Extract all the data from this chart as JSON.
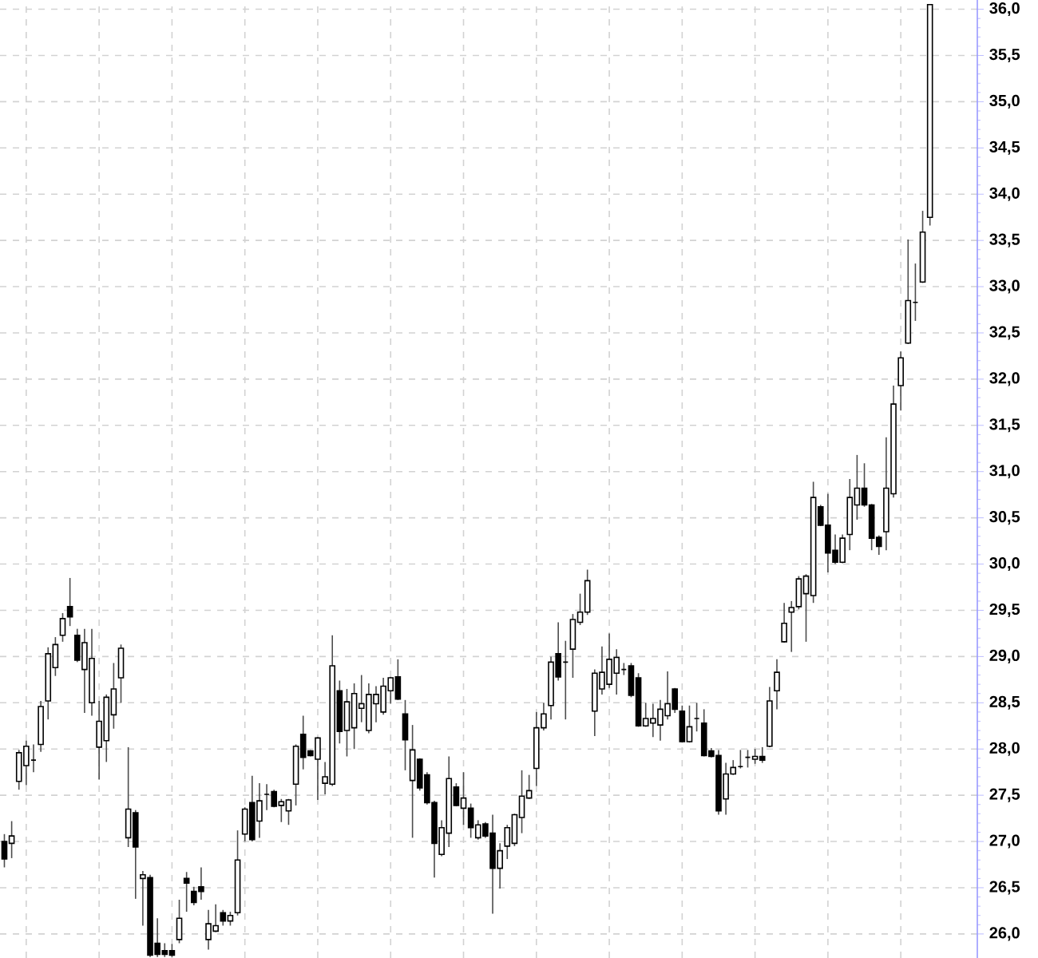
{
  "chart_data": {
    "type": "candlestick",
    "categories": [
      null,
      null,
      null,
      null,
      null,
      null,
      null,
      null,
      null,
      null,
      null,
      null,
      null,
      null,
      null,
      null,
      null,
      null,
      null,
      null,
      null,
      null,
      null,
      null,
      null,
      null,
      null,
      null,
      null,
      null,
      null,
      null,
      null,
      null,
      null,
      null,
      null,
      null,
      null,
      null,
      null,
      null,
      null,
      null,
      null,
      null,
      null,
      null,
      null,
      null,
      null,
      null,
      null,
      null,
      null,
      null,
      null,
      null,
      null,
      null,
      null,
      null,
      null,
      null,
      null,
      null,
      null,
      null,
      null,
      null,
      null,
      null,
      null,
      null,
      null,
      null,
      null,
      null,
      null,
      null,
      null,
      null,
      null,
      null,
      null,
      null,
      null,
      null,
      null,
      null,
      null,
      null,
      null,
      null,
      null,
      null,
      null,
      null,
      null,
      null,
      null,
      null,
      null,
      null,
      null,
      null,
      null,
      null,
      null,
      null,
      null,
      null,
      null,
      null,
      null,
      null,
      null,
      null,
      null,
      null,
      null,
      null,
      null,
      null,
      null,
      null,
      null,
      null
    ],
    "ohlc": [
      [
        27.0,
        27.08,
        26.72,
        26.81
      ],
      [
        26.98,
        27.22,
        26.82,
        27.06
      ],
      [
        27.65,
        27.99,
        27.56,
        27.96
      ],
      [
        27.82,
        28.09,
        27.61,
        28.03
      ],
      [
        27.88,
        28.05,
        27.75,
        27.88
      ],
      [
        28.05,
        28.52,
        27.97,
        28.46
      ],
      [
        28.52,
        29.1,
        28.32,
        29.03
      ],
      [
        28.88,
        29.21,
        28.79,
        29.13
      ],
      [
        29.23,
        29.47,
        29.16,
        29.41
      ],
      [
        29.54,
        29.85,
        29.33,
        29.43
      ],
      [
        29.23,
        29.3,
        28.94,
        28.96
      ],
      [
        28.86,
        29.3,
        28.39,
        29.15
      ],
      [
        28.5,
        29.3,
        28.36,
        28.98
      ],
      [
        28.02,
        28.52,
        27.67,
        28.3
      ],
      [
        28.09,
        28.59,
        27.86,
        28.56
      ],
      [
        28.37,
        28.93,
        28.22,
        28.65
      ],
      [
        28.77,
        29.13,
        28.5,
        29.09
      ],
      [
        27.04,
        28.02,
        26.94,
        27.35
      ],
      [
        27.31,
        27.34,
        26.38,
        26.94
      ],
      [
        26.6,
        26.68,
        26.09,
        26.64
      ],
      [
        26.61,
        26.64,
        25.75,
        25.77
      ],
      [
        25.9,
        26.17,
        25.75,
        25.78
      ],
      [
        25.82,
        25.9,
        25.75,
        25.78
      ],
      [
        25.82,
        25.89,
        25.75,
        25.77
      ],
      [
        25.94,
        26.37,
        25.9,
        26.17
      ],
      [
        26.6,
        26.67,
        26.24,
        26.55
      ],
      [
        26.46,
        26.51,
        26.31,
        26.34
      ],
      [
        26.51,
        26.72,
        26.37,
        26.46
      ],
      [
        25.94,
        26.26,
        25.83,
        26.11
      ],
      [
        26.03,
        26.32,
        26.02,
        26.09
      ],
      [
        26.23,
        26.26,
        26.09,
        26.14
      ],
      [
        26.14,
        26.24,
        26.09,
        26.2
      ],
      [
        26.23,
        27.12,
        26.2,
        26.8
      ],
      [
        27.08,
        27.37,
        27.0,
        27.35
      ],
      [
        27.42,
        27.71,
        27.0,
        27.02
      ],
      [
        27.22,
        27.63,
        27.04,
        27.44
      ],
      [
        27.51,
        27.62,
        27.34,
        27.51
      ],
      [
        27.54,
        27.56,
        27.37,
        27.38
      ],
      [
        27.39,
        27.46,
        27.21,
        27.43
      ],
      [
        27.33,
        27.46,
        27.18,
        27.45
      ],
      [
        27.62,
        28.05,
        27.39,
        28.03
      ],
      [
        28.16,
        28.36,
        27.78,
        27.91
      ],
      [
        27.98,
        27.99,
        27.92,
        27.93
      ],
      [
        27.89,
        28.13,
        27.45,
        28.12
      ],
      [
        27.63,
        27.86,
        27.51,
        27.7
      ],
      [
        27.62,
        29.23,
        27.6,
        28.9
      ],
      [
        28.63,
        28.74,
        28.06,
        28.19
      ],
      [
        28.2,
        28.65,
        27.92,
        28.51
      ],
      [
        28.23,
        28.71,
        28.0,
        28.6
      ],
      [
        28.44,
        28.8,
        28.29,
        28.49
      ],
      [
        28.2,
        28.71,
        28.17,
        28.59
      ],
      [
        28.49,
        28.68,
        28.29,
        28.59
      ],
      [
        28.4,
        28.77,
        28.37,
        28.68
      ],
      [
        28.63,
        28.78,
        28.49,
        28.77
      ],
      [
        28.78,
        28.97,
        28.53,
        28.54
      ],
      [
        28.38,
        28.53,
        27.77,
        28.1
      ],
      [
        27.66,
        28.26,
        27.04,
        27.99
      ],
      [
        27.89,
        27.9,
        27.55,
        27.58
      ],
      [
        27.72,
        27.75,
        27.4,
        27.42
      ],
      [
        27.42,
        27.44,
        26.61,
        26.98
      ],
      [
        26.86,
        27.23,
        26.84,
        27.15
      ],
      [
        27.09,
        27.92,
        26.94,
        27.68
      ],
      [
        27.59,
        27.63,
        27.38,
        27.39
      ],
      [
        27.36,
        27.75,
        27.18,
        27.47
      ],
      [
        27.36,
        27.41,
        27.04,
        27.15
      ],
      [
        27.04,
        27.23,
        27.02,
        27.18
      ],
      [
        27.19,
        27.21,
        27.04,
        27.06
      ],
      [
        27.09,
        27.29,
        26.22,
        26.71
      ],
      [
        26.71,
        26.98,
        26.49,
        26.9
      ],
      [
        26.95,
        27.18,
        26.81,
        27.15
      ],
      [
        26.98,
        27.3,
        26.95,
        27.29
      ],
      [
        27.26,
        27.77,
        27.09,
        27.49
      ],
      [
        27.47,
        27.72,
        27.46,
        27.55
      ],
      [
        27.79,
        28.4,
        27.6,
        28.23
      ],
      [
        28.23,
        28.5,
        28.2,
        28.38
      ],
      [
        28.47,
        29.0,
        28.32,
        28.94
      ],
      [
        29.03,
        29.37,
        28.74,
        28.78
      ],
      [
        28.94,
        29.17,
        28.32,
        28.94
      ],
      [
        29.08,
        29.46,
        28.77,
        29.4
      ],
      [
        29.37,
        29.68,
        29.34,
        29.48
      ],
      [
        29.48,
        29.94,
        29.45,
        29.82
      ],
      [
        28.41,
        28.86,
        28.14,
        28.82
      ],
      [
        28.65,
        29.11,
        28.59,
        28.83
      ],
      [
        28.7,
        29.25,
        28.66,
        28.97
      ],
      [
        28.82,
        29.08,
        28.59,
        28.99
      ],
      [
        28.86,
        28.93,
        28.8,
        28.86
      ],
      [
        28.9,
        28.93,
        28.56,
        28.58
      ],
      [
        28.77,
        28.82,
        28.24,
        28.25
      ],
      [
        28.25,
        28.5,
        28.24,
        28.33
      ],
      [
        28.28,
        28.49,
        28.13,
        28.33
      ],
      [
        28.26,
        28.53,
        28.09,
        28.43
      ],
      [
        28.36,
        28.84,
        28.32,
        28.49
      ],
      [
        28.65,
        28.66,
        28.39,
        28.43
      ],
      [
        28.41,
        28.47,
        28.07,
        28.08
      ],
      [
        28.08,
        28.47,
        28.07,
        28.24
      ],
      [
        28.33,
        28.5,
        28.19,
        28.33
      ],
      [
        28.28,
        28.43,
        27.92,
        27.93
      ],
      [
        27.98,
        28.01,
        27.91,
        27.92
      ],
      [
        27.93,
        27.99,
        27.29,
        27.33
      ],
      [
        27.46,
        27.85,
        27.29,
        27.73
      ],
      [
        27.73,
        27.88,
        27.72,
        27.8
      ],
      [
        27.81,
        27.99,
        27.79,
        27.81
      ],
      [
        27.91,
        27.99,
        27.8,
        27.91
      ],
      [
        27.89,
        28.0,
        27.84,
        27.92
      ],
      [
        27.92,
        28.02,
        27.85,
        27.88
      ],
      [
        28.03,
        28.67,
        28.02,
        28.52
      ],
      [
        28.63,
        28.97,
        28.43,
        28.83
      ],
      [
        29.16,
        29.58,
        29.15,
        29.36
      ],
      [
        29.48,
        29.6,
        29.05,
        29.53
      ],
      [
        29.54,
        29.87,
        29.51,
        29.84
      ],
      [
        29.68,
        29.89,
        29.16,
        29.87
      ],
      [
        29.66,
        30.89,
        29.58,
        30.72
      ],
      [
        30.62,
        30.64,
        30.41,
        30.42
      ],
      [
        30.42,
        30.76,
        29.91,
        30.12
      ],
      [
        30.15,
        30.32,
        30.0,
        30.02
      ],
      [
        30.02,
        30.32,
        30.01,
        30.28
      ],
      [
        30.32,
        30.92,
        30.15,
        30.72
      ],
      [
        30.64,
        31.18,
        30.48,
        30.82
      ],
      [
        30.82,
        31.09,
        30.62,
        30.64
      ],
      [
        30.64,
        30.65,
        30.15,
        30.28
      ],
      [
        30.29,
        30.31,
        30.1,
        30.19
      ],
      [
        30.35,
        31.37,
        30.15,
        30.82
      ],
      [
        30.76,
        31.93,
        30.72,
        31.73
      ],
      [
        31.93,
        32.3,
        31.66,
        32.23
      ],
      [
        32.39,
        33.51,
        32.38,
        32.85
      ],
      [
        32.83,
        33.25,
        32.63,
        32.83
      ],
      [
        33.05,
        33.82,
        33.04,
        33.59
      ],
      [
        33.75,
        36.05,
        33.66,
        36.05
      ]
    ],
    "ylim": [
      25.74,
      36.1
    ],
    "yticks": [
      {
        "value": 26.0,
        "label": "26,0"
      },
      {
        "value": 26.5,
        "label": "26,5"
      },
      {
        "value": 27.0,
        "label": "27,0"
      },
      {
        "value": 27.5,
        "label": "27,5"
      },
      {
        "value": 28.0,
        "label": "28,0"
      },
      {
        "value": 28.5,
        "label": "28,5"
      },
      {
        "value": 29.0,
        "label": "29,0"
      },
      {
        "value": 29.5,
        "label": "29,5"
      },
      {
        "value": 30.0,
        "label": "30,0"
      },
      {
        "value": 30.5,
        "label": "30,5"
      },
      {
        "value": 31.0,
        "label": "31,0"
      },
      {
        "value": 31.5,
        "label": "31,5"
      },
      {
        "value": 32.0,
        "label": "32,0"
      },
      {
        "value": 32.5,
        "label": "32,5"
      },
      {
        "value": 33.0,
        "label": "33,0"
      },
      {
        "value": 33.5,
        "label": "33,5"
      },
      {
        "value": 34.0,
        "label": "34,0"
      },
      {
        "value": 34.5,
        "label": "34,5"
      },
      {
        "value": 35.0,
        "label": "35,0"
      },
      {
        "value": 35.5,
        "label": "35,5"
      },
      {
        "value": 36.0,
        "label": "36,0"
      }
    ],
    "grid": true,
    "tick_labels": "y"
  }
}
